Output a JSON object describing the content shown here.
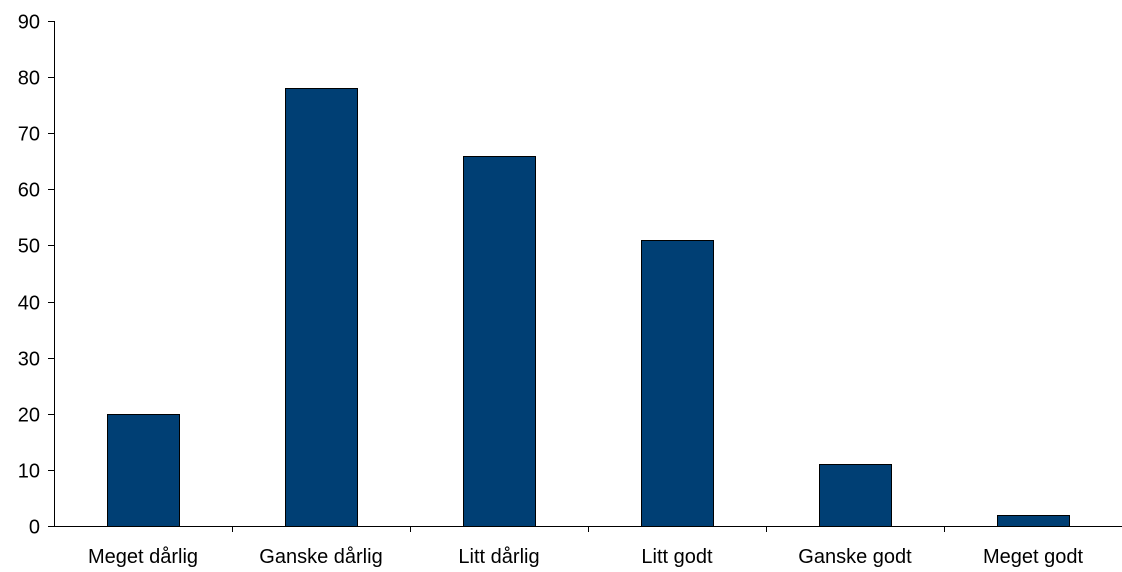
{
  "chart_data": {
    "type": "bar",
    "categories": [
      "Meget dårlig",
      "Ganske dårlig",
      "Litt dårlig",
      "Litt godt",
      "Ganske godt",
      "Meget godt"
    ],
    "values": [
      20,
      78,
      66,
      51,
      11,
      2
    ],
    "title": "",
    "xlabel": "",
    "ylabel": "",
    "ylim": [
      0,
      90
    ],
    "yticks": [
      0,
      10,
      20,
      30,
      40,
      50,
      60,
      70,
      80,
      90
    ],
    "grid": false,
    "legend": "none",
    "bar_color": "#003F74",
    "bar_border_color": "#000000"
  }
}
